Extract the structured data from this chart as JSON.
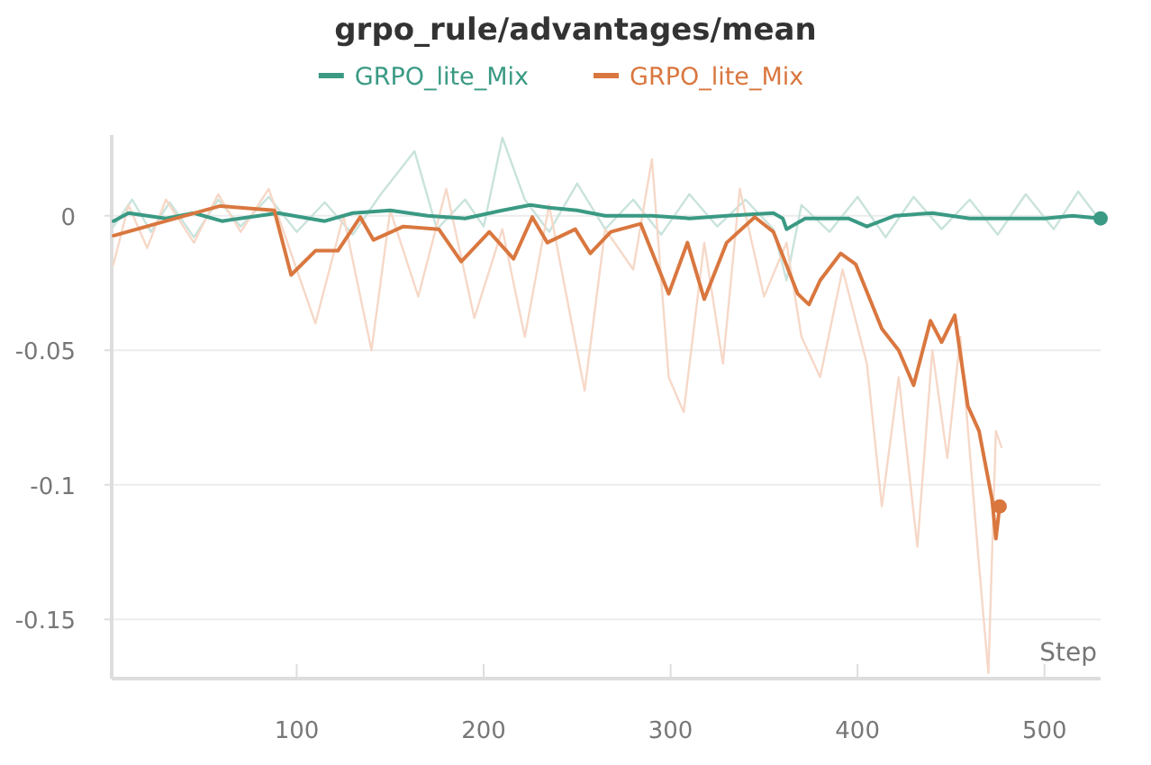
{
  "chart_data": {
    "type": "line",
    "title": "grpo_rule/advantages/mean",
    "xlabel": "Step",
    "xlim": [
      1,
      530
    ],
    "ylim": [
      -0.172,
      0.03
    ],
    "xticks": [
      100,
      200,
      300,
      400,
      500
    ],
    "yticks": [
      0,
      -0.05,
      -0.1,
      -0.15
    ],
    "grid": "y",
    "legend": "top",
    "series": [
      {
        "color": "#c9e3dc",
        "x": [
          2,
          12,
          22,
          32,
          45,
          58,
          70,
          85,
          100,
          115,
          130,
          145,
          163,
          175,
          190,
          200,
          210,
          222,
          235,
          250,
          265,
          280,
          295,
          310,
          325,
          340,
          355,
          362,
          370,
          385,
          400,
          415,
          430,
          445,
          460,
          475,
          490,
          505,
          518,
          530
        ],
        "values": [
          -0.004,
          0.006,
          -0.006,
          0.005,
          -0.008,
          0.006,
          -0.004,
          0.007,
          -0.006,
          0.005,
          -0.007,
          0.008,
          0.024,
          -0.005,
          0.006,
          -0.004,
          0.029,
          0.006,
          -0.006,
          0.012,
          -0.005,
          0.006,
          -0.007,
          0.008,
          -0.004,
          0.006,
          -0.005,
          -0.024,
          0.004,
          -0.006,
          0.007,
          -0.008,
          0.007,
          -0.005,
          0.006,
          -0.007,
          0.008,
          -0.005,
          0.009,
          -0.002
        ]
      },
      {
        "color": "#f6d8c8",
        "x": [
          2,
          10,
          20,
          30,
          45,
          58,
          70,
          85,
          100,
          110,
          125,
          140,
          150,
          165,
          180,
          195,
          210,
          222,
          235,
          254,
          265,
          280,
          290,
          299,
          307,
          318,
          328,
          337,
          350,
          362,
          370,
          380,
          392,
          405,
          413,
          422,
          432,
          440,
          448,
          455,
          465,
          470,
          474,
          477
        ],
        "values": [
          -0.018,
          0.004,
          -0.012,
          0.006,
          -0.01,
          0.008,
          -0.006,
          0.01,
          -0.02,
          -0.04,
          0.0,
          -0.05,
          0.002,
          -0.03,
          0.01,
          -0.038,
          -0.005,
          -0.045,
          0.004,
          -0.065,
          -0.005,
          -0.02,
          0.021,
          -0.06,
          -0.073,
          -0.01,
          -0.055,
          0.01,
          -0.03,
          -0.01,
          -0.045,
          -0.06,
          -0.02,
          -0.055,
          -0.108,
          -0.06,
          -0.123,
          -0.05,
          -0.09,
          -0.045,
          -0.13,
          -0.17,
          -0.08,
          -0.086
        ]
      },
      {
        "name": "GRPO_lite_Mix",
        "color": "#3a9a84",
        "x": [
          2,
          10,
          30,
          45,
          60,
          90,
          115,
          130,
          150,
          170,
          190,
          210,
          225,
          235,
          250,
          265,
          290,
          310,
          330,
          355,
          360,
          362,
          372,
          395,
          405,
          420,
          440,
          460,
          480,
          500,
          515,
          530
        ],
        "values": [
          -0.002,
          0.001,
          -0.001,
          0.001,
          -0.002,
          0.001,
          -0.002,
          0.001,
          0.002,
          0,
          -0.001,
          0.002,
          0.004,
          0.003,
          0.002,
          0,
          0,
          -0.001,
          0,
          0.001,
          -0.001,
          -0.005,
          -0.001,
          -0.001,
          -0.004,
          0,
          0.001,
          -0.001,
          -0.001,
          -0.001,
          0,
          -0.001
        ]
      },
      {
        "name": "GRPO_lite_Mix",
        "color": "#d9773f",
        "x": [
          2,
          30,
          59,
          88,
          97,
          110,
          122,
          134,
          141,
          157,
          176,
          188,
          203,
          216,
          226,
          234,
          249,
          257,
          268,
          284,
          299,
          309,
          318,
          330,
          345,
          355,
          368,
          374,
          380,
          391,
          399,
          413,
          422,
          430,
          439,
          445,
          452,
          459,
          465,
          472,
          474,
          476
        ],
        "values": [
          -0.0074,
          -0.002,
          0.0036,
          0.002,
          -0.022,
          -0.013,
          -0.013,
          -0.0005,
          -0.009,
          -0.004,
          -0.005,
          -0.017,
          -0.006,
          -0.016,
          -0.0005,
          -0.01,
          -0.005,
          -0.014,
          -0.006,
          -0.003,
          -0.029,
          -0.01,
          -0.031,
          -0.01,
          -0.0005,
          -0.006,
          -0.029,
          -0.033,
          -0.024,
          -0.014,
          -0.018,
          -0.042,
          -0.05,
          -0.063,
          -0.039,
          -0.047,
          -0.037,
          -0.0707,
          -0.08,
          -0.1056,
          -0.12,
          -0.108
        ]
      }
    ]
  }
}
